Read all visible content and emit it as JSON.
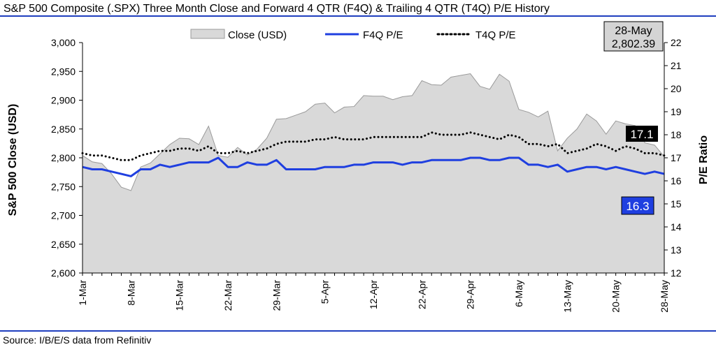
{
  "title": "S&P 500 Composite (.SPX) Three Month Close and Forward 4 QTR (F4Q) & Trailing 4 QTR (T4Q) P/E History",
  "source": "Source: I/B/E/S data from Refinitiv",
  "colors": {
    "rule": "#1f3fbf",
    "area_fill": "#d9d9d9",
    "area_stroke": "#9a9a9a",
    "f4q_line": "#1f3fe0",
    "t4q_line": "#000000",
    "t4q_label_bg": "#000000",
    "f4q_label_bg": "#1f3fe0"
  },
  "callout": {
    "line1": "28-May",
    "line2": "2,802.39"
  },
  "end_labels": {
    "t4q": "17.1",
    "f4q": "16.3"
  },
  "chart_data": {
    "type": "area",
    "x_labels": [
      "1-Mar",
      "8-Mar",
      "15-Mar",
      "22-Mar",
      "29-Mar",
      "5-Apr",
      "12-Apr",
      "22-Apr",
      "29-Apr",
      "6-May",
      "13-May",
      "20-May",
      "28-May"
    ],
    "x_label_index": [
      0,
      5,
      10,
      15,
      20,
      25,
      30,
      35,
      40,
      45,
      50,
      55,
      60
    ],
    "ylabel": "S&P 500 Close (USD)",
    "ylim": [
      2600,
      3000
    ],
    "yticks": [
      "2,600",
      "2,650",
      "2,700",
      "2,750",
      "2,800",
      "2,850",
      "2,900",
      "2,950",
      "3,000"
    ],
    "y2label": "P/E Ratio",
    "y2lim": [
      12,
      22
    ],
    "y2ticks": [
      "12",
      "13",
      "14",
      "15",
      "16",
      "17",
      "18",
      "19",
      "20",
      "21",
      "22"
    ],
    "legend": {
      "position": "top",
      "entries": [
        "Close (USD)",
        "F4Q P/E",
        "T4Q P/E"
      ]
    },
    "grid": false,
    "series": [
      {
        "name": "Close (USD)",
        "type": "area",
        "axis": "left",
        "values": [
          2804,
          2793,
          2790,
          2772,
          2749,
          2743,
          2784,
          2791,
          2807,
          2823,
          2834,
          2833,
          2823,
          2855,
          2804,
          2801,
          2818,
          2805,
          2815,
          2834,
          2867,
          2868,
          2874,
          2880,
          2893,
          2895,
          2878,
          2888,
          2889,
          2908,
          2907,
          2907,
          2901,
          2906,
          2908,
          2934,
          2927,
          2926,
          2940,
          2943,
          2946,
          2924,
          2919,
          2945,
          2933,
          2884,
          2879,
          2871,
          2881,
          2812,
          2834,
          2850,
          2876,
          2864,
          2841,
          2864,
          2859,
          2856,
          2826,
          2822,
          2802
        ]
      },
      {
        "name": "F4Q P/E",
        "type": "line",
        "axis": "right",
        "values": [
          16.6,
          16.5,
          16.5,
          16.4,
          16.3,
          16.2,
          16.5,
          16.5,
          16.7,
          16.6,
          16.7,
          16.8,
          16.8,
          16.8,
          17.0,
          16.6,
          16.6,
          16.8,
          16.7,
          16.7,
          16.9,
          16.5,
          16.5,
          16.5,
          16.5,
          16.6,
          16.6,
          16.6,
          16.7,
          16.7,
          16.8,
          16.8,
          16.8,
          16.7,
          16.8,
          16.8,
          16.9,
          16.9,
          16.9,
          16.9,
          17.0,
          17.0,
          16.9,
          16.9,
          17.0,
          17.0,
          16.7,
          16.7,
          16.6,
          16.7,
          16.4,
          16.5,
          16.6,
          16.6,
          16.5,
          16.6,
          16.5,
          16.4,
          16.3,
          16.4,
          16.3
        ]
      },
      {
        "name": "T4Q P/E",
        "type": "line",
        "style": "dotted",
        "axis": "right",
        "values": [
          17.2,
          17.1,
          17.1,
          17.0,
          16.9,
          16.9,
          17.1,
          17.2,
          17.3,
          17.3,
          17.4,
          17.4,
          17.3,
          17.5,
          17.2,
          17.2,
          17.3,
          17.2,
          17.3,
          17.4,
          17.6,
          17.7,
          17.7,
          17.7,
          17.8,
          17.8,
          17.9,
          17.8,
          17.8,
          17.8,
          17.9,
          17.9,
          17.9,
          17.9,
          17.9,
          17.9,
          18.1,
          18.0,
          18.0,
          18.0,
          18.1,
          18.0,
          17.9,
          17.8,
          18.0,
          17.9,
          17.6,
          17.6,
          17.5,
          17.6,
          17.2,
          17.3,
          17.4,
          17.6,
          17.5,
          17.3,
          17.5,
          17.4,
          17.2,
          17.2,
          17.1
        ]
      }
    ]
  }
}
